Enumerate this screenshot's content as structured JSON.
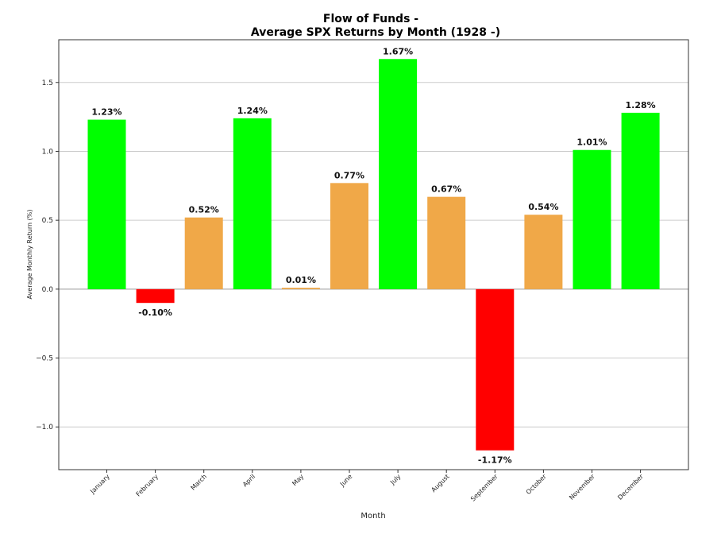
{
  "chart_data": {
    "type": "bar",
    "title": "Flow of Funds -",
    "subtitle": "Average SPX Returns by Month (1928 -)",
    "xlabel": "Month",
    "ylabel": "Average Monthly Return (%)",
    "ylim": [
      -1.31,
      1.81
    ],
    "yticks": [
      -1.0,
      -0.5,
      0.0,
      0.5,
      1.0,
      1.5
    ],
    "ytick_labels": [
      "−1.0",
      "−0.5",
      "0.0",
      "0.5",
      "1.0",
      "1.5"
    ],
    "grid": "horizontal",
    "categories": [
      "January",
      "February",
      "March",
      "April",
      "May",
      "June",
      "July",
      "August",
      "September",
      "October",
      "November",
      "December"
    ],
    "values": [
      1.23,
      -0.1,
      0.52,
      1.24,
      0.01,
      0.77,
      1.67,
      0.67,
      -1.17,
      0.54,
      1.01,
      1.28
    ],
    "value_labels": [
      "1.23%",
      "-0.10%",
      "0.52%",
      "1.24%",
      "0.01%",
      "0.77%",
      "1.67%",
      "0.67%",
      "-1.17%",
      "0.54%",
      "1.01%",
      "1.28%"
    ],
    "colors": [
      "#00ff00",
      "#ff0000",
      "#f0a848",
      "#00ff00",
      "#f0a848",
      "#f0a848",
      "#00ff00",
      "#f0a848",
      "#ff0000",
      "#f0a848",
      "#00ff00",
      "#00ff00"
    ],
    "gridline_color": "#cccccc",
    "zero_line_color": "#999999"
  }
}
